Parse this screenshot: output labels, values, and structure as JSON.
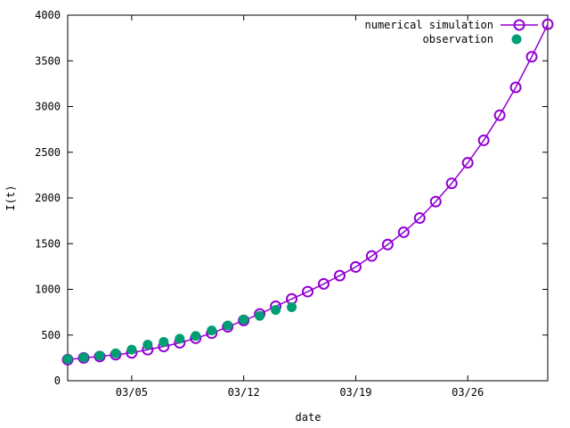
{
  "chart_data": {
    "type": "line",
    "title": "",
    "xlabel": "date",
    "ylabel": "I(t)",
    "xlim": [
      "03/01",
      "03/31"
    ],
    "ylim": [
      0,
      4000
    ],
    "x_ticks": [
      {
        "date": "03/05",
        "label": "03/05"
      },
      {
        "date": "03/12",
        "label": "03/12"
      },
      {
        "date": "03/19",
        "label": "03/19"
      },
      {
        "date": "03/26",
        "label": "03/26"
      }
    ],
    "y_ticks": [
      0,
      500,
      1000,
      1500,
      2000,
      2500,
      3000,
      3500,
      4000
    ],
    "grid": false,
    "legend_position": "top-right",
    "series": [
      {
        "name": "numerical simulation",
        "style": "line-open-circles",
        "color": "#9400d3",
        "x": [
          "03/01",
          "03/02",
          "03/03",
          "03/04",
          "03/05",
          "03/06",
          "03/07",
          "03/08",
          "03/09",
          "03/10",
          "03/11",
          "03/12",
          "03/13",
          "03/14",
          "03/15",
          "03/16",
          "03/17",
          "03/18",
          "03/19",
          "03/20",
          "03/21",
          "03/22",
          "03/23",
          "03/24",
          "03/25",
          "03/26",
          "03/27",
          "03/28",
          "03/29",
          "03/30",
          "03/31"
        ],
        "values": [
          230,
          250,
          265,
          285,
          305,
          340,
          375,
          415,
          465,
          520,
          590,
          660,
          730,
          815,
          895,
          975,
          1060,
          1150,
          1245,
          1365,
          1490,
          1625,
          1780,
          1960,
          2160,
          2385,
          2630,
          2905,
          3210,
          3545,
          3900
        ]
      },
      {
        "name": "observation",
        "style": "filled-circles",
        "color": "#009e73",
        "x": [
          "03/01",
          "03/02",
          "03/03",
          "03/04",
          "03/05",
          "03/06",
          "03/07",
          "03/08",
          "03/09",
          "03/10",
          "03/11",
          "03/12",
          "03/13",
          "03/14",
          "03/15"
        ],
        "values": [
          235,
          255,
          275,
          300,
          340,
          395,
          425,
          460,
          490,
          550,
          605,
          670,
          710,
          775,
          805
        ]
      }
    ]
  }
}
